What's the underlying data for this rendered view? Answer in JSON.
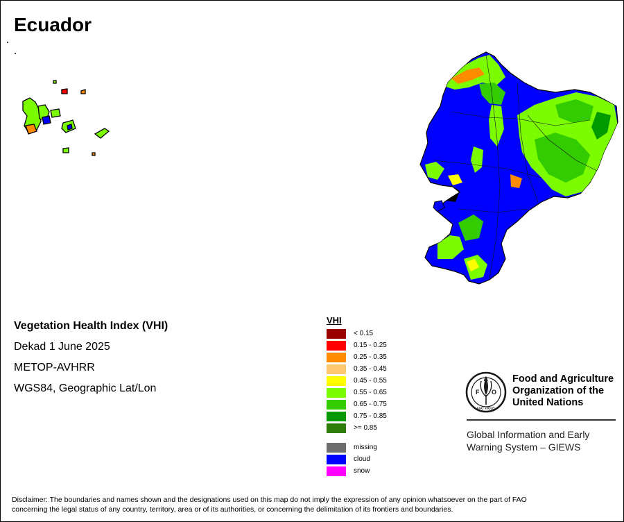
{
  "title": "Ecuador",
  "info": {
    "product": "Vegetation Health Index (VHI)",
    "period": "Dekad 1 June 2025",
    "sensor": "METOP-AVHRR",
    "projection": "WGS84, Geographic Lat/Lon"
  },
  "legend": {
    "title": "VHI",
    "classes": [
      {
        "label": "< 0.15",
        "color": "#990000"
      },
      {
        "label": "0.15 - 0.25",
        "color": "#ff0000"
      },
      {
        "label": "0.25 - 0.35",
        "color": "#ff8c00"
      },
      {
        "label": "0.35 - 0.45",
        "color": "#ffc86e"
      },
      {
        "label": "0.45 - 0.55",
        "color": "#ffff00"
      },
      {
        "label": "0.55 - 0.65",
        "color": "#7cfc00"
      },
      {
        "label": "0.65 - 0.75",
        "color": "#33cc00"
      },
      {
        "label": "0.75 - 0.85",
        "color": "#009900"
      },
      {
        "label": ">= 0.85",
        "color": "#2e7d0a"
      }
    ],
    "extra": [
      {
        "label": "missing",
        "color": "#6e6e6e"
      },
      {
        "label": "cloud",
        "color": "#0000ff"
      },
      {
        "label": "snow",
        "color": "#ff00ff"
      }
    ]
  },
  "logo": {
    "letters": "FAO",
    "motto": "FIAT PANIS",
    "org_lines": [
      "Food and Agriculture",
      "Organization of the",
      "United Nations"
    ],
    "system_lines": [
      "Global Information and Early",
      "Warning System – GIEWS"
    ]
  },
  "disclaimer_lines": [
    "Disclaimer: The boundaries and names shown and the designations used on this map do not imply the expression of any opinion whatsoever on the part of FAO",
    "concerning the legal status of any country, territory, area or of its authorities, or concerning the delimitation of its frontiers and boundaries."
  ]
}
